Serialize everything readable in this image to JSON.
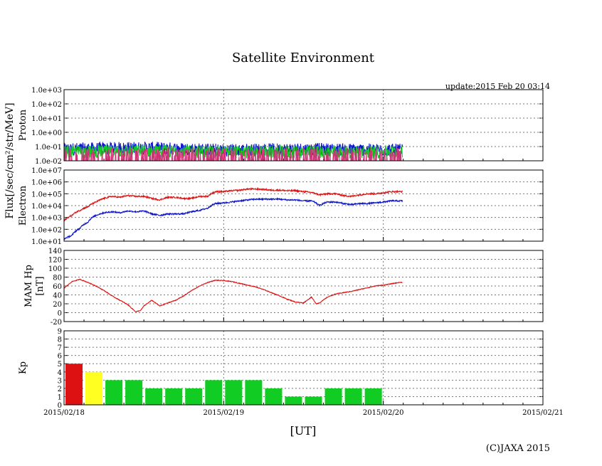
{
  "title": "Satellite Environment",
  "update_label": "update:2015 Feb 20 03:14",
  "copyright": "(C)JAXA 2015",
  "x_axis_label": "[UT]",
  "x_ticks": [
    "2015/02/18",
    "2015/02/19",
    "2015/02/20",
    "2015/02/21"
  ],
  "flux_label": "Flux[/sec/cm²/str/MeV]",
  "colors": {
    "red": "#dd1111",
    "blue": "#0a14c8",
    "green": "#11cc22",
    "magenta": "#cc3377",
    "yellow": "#ffff22"
  },
  "chart_data": [
    {
      "type": "line",
      "panel": "proton",
      "ylabel": "Proton",
      "yscale": "log",
      "ylim": [
        0.01,
        1000
      ],
      "y_ticks": [
        "1.0e-02",
        "1.0e-01",
        "1.0e+00",
        "1.0e+01",
        "1.0e+02",
        "1.0e+03"
      ],
      "xlim_days": [
        0,
        3
      ],
      "series": [
        {
          "color": "blue",
          "x_days": [
            0,
            0.5,
            1.0,
            1.5,
            2.0,
            2.12
          ],
          "values": [
            0.08,
            0.1,
            0.07,
            0.08,
            0.07,
            0.07
          ]
        },
        {
          "color": "green",
          "x_days": [
            0,
            0.5,
            1.0,
            1.5,
            2.0,
            2.12
          ],
          "values": [
            0.05,
            0.06,
            0.05,
            0.05,
            0.05,
            0.05
          ]
        },
        {
          "color": "magenta",
          "x_days": [
            0,
            0.5,
            1.0,
            1.5,
            2.0,
            2.12
          ],
          "values": [
            0.02,
            0.02,
            0.02,
            0.02,
            0.02,
            0.02
          ]
        }
      ]
    },
    {
      "type": "line",
      "panel": "electron",
      "ylabel": "Electron",
      "yscale": "log",
      "ylim": [
        10,
        10000000
      ],
      "y_ticks": [
        "1.0e+01",
        "1.0e+02",
        "1.0e+03",
        "1.0e+04",
        "1.0e+05",
        "1.0e+06",
        "1.0e+07"
      ],
      "xlim_days": [
        0,
        3
      ],
      "series": [
        {
          "color": "red",
          "x_days": [
            0,
            0.05,
            0.1,
            0.15,
            0.2,
            0.25,
            0.3,
            0.35,
            0.4,
            0.45,
            0.5,
            0.55,
            0.6,
            0.65,
            0.7,
            0.75,
            0.8,
            0.85,
            0.9,
            0.95,
            1.0,
            1.05,
            1.1,
            1.15,
            1.2,
            1.25,
            1.3,
            1.35,
            1.4,
            1.45,
            1.5,
            1.55,
            1.6,
            1.65,
            1.7,
            1.75,
            1.8,
            1.85,
            1.9,
            1.95,
            2.0,
            2.05,
            2.12
          ],
          "values": [
            500,
            1500,
            4000,
            8000,
            20000,
            40000,
            60000,
            50000,
            70000,
            60000,
            60000,
            40000,
            30000,
            50000,
            50000,
            40000,
            40000,
            60000,
            60000,
            150000,
            150000,
            180000,
            200000,
            250000,
            250000,
            230000,
            200000,
            200000,
            180000,
            180000,
            150000,
            130000,
            80000,
            100000,
            100000,
            70000,
            60000,
            80000,
            100000,
            100000,
            120000,
            150000,
            150000
          ]
        },
        {
          "color": "blue",
          "x_days": [
            0,
            0.05,
            0.1,
            0.15,
            0.2,
            0.25,
            0.3,
            0.35,
            0.4,
            0.45,
            0.5,
            0.55,
            0.6,
            0.65,
            0.7,
            0.75,
            0.8,
            0.85,
            0.9,
            0.95,
            1.0,
            1.05,
            1.1,
            1.15,
            1.2,
            1.25,
            1.3,
            1.35,
            1.4,
            1.45,
            1.5,
            1.55,
            1.6,
            1.65,
            1.7,
            1.75,
            1.8,
            1.85,
            1.9,
            1.95,
            2.0,
            2.05,
            2.12
          ],
          "values": [
            15,
            30,
            120,
            400,
            1500,
            2500,
            3000,
            2500,
            3500,
            3000,
            3500,
            2000,
            1500,
            2000,
            2000,
            2000,
            3000,
            4000,
            6000,
            15000,
            17000,
            20000,
            25000,
            30000,
            35000,
            35000,
            35000,
            35000,
            30000,
            30000,
            25000,
            25000,
            10000,
            20000,
            20000,
            15000,
            12000,
            15000,
            15000,
            17000,
            20000,
            25000,
            25000
          ]
        }
      ]
    },
    {
      "type": "line",
      "panel": "mam",
      "ylabel": "MAM Hp",
      "ylabel2": "[nT]",
      "ylim": [
        -20,
        140
      ],
      "y_ticks": [
        "-20",
        "0",
        "20",
        "40",
        "60",
        "80",
        "100",
        "120",
        "140"
      ],
      "xlim_days": [
        0,
        3
      ],
      "series": [
        {
          "color": "red",
          "x_days": [
            0,
            0.05,
            0.1,
            0.15,
            0.2,
            0.25,
            0.3,
            0.35,
            0.4,
            0.43,
            0.45,
            0.48,
            0.5,
            0.55,
            0.58,
            0.6,
            0.65,
            0.7,
            0.75,
            0.8,
            0.85,
            0.9,
            0.95,
            1.0,
            1.05,
            1.1,
            1.15,
            1.2,
            1.25,
            1.3,
            1.35,
            1.4,
            1.45,
            1.5,
            1.55,
            1.58,
            1.6,
            1.65,
            1.7,
            1.75,
            1.8,
            1.85,
            1.9,
            1.95,
            2.0,
            2.05,
            2.1,
            2.12
          ],
          "values": [
            55,
            70,
            75,
            68,
            60,
            50,
            38,
            28,
            18,
            8,
            2,
            5,
            15,
            28,
            20,
            15,
            22,
            28,
            38,
            50,
            60,
            68,
            73,
            72,
            70,
            66,
            62,
            58,
            52,
            45,
            38,
            30,
            24,
            22,
            35,
            20,
            22,
            35,
            42,
            45,
            48,
            52,
            56,
            60,
            62,
            65,
            68,
            68
          ]
        }
      ]
    },
    {
      "type": "bar",
      "panel": "kp",
      "ylabel": "Kp",
      "ylim": [
        0,
        9
      ],
      "y_ticks": [
        "0",
        "1",
        "2",
        "3",
        "4",
        "5",
        "6",
        "7",
        "8",
        "9"
      ],
      "bar_interval_hours": 3,
      "values": [
        5,
        4,
        3,
        3,
        2,
        2,
        2,
        3,
        3,
        3,
        2,
        1,
        1,
        2,
        2,
        2
      ],
      "bar_colors": [
        "red",
        "yellow",
        "green",
        "green",
        "green",
        "green",
        "green",
        "green",
        "green",
        "green",
        "green",
        "green",
        "green",
        "green",
        "green",
        "green"
      ]
    }
  ]
}
